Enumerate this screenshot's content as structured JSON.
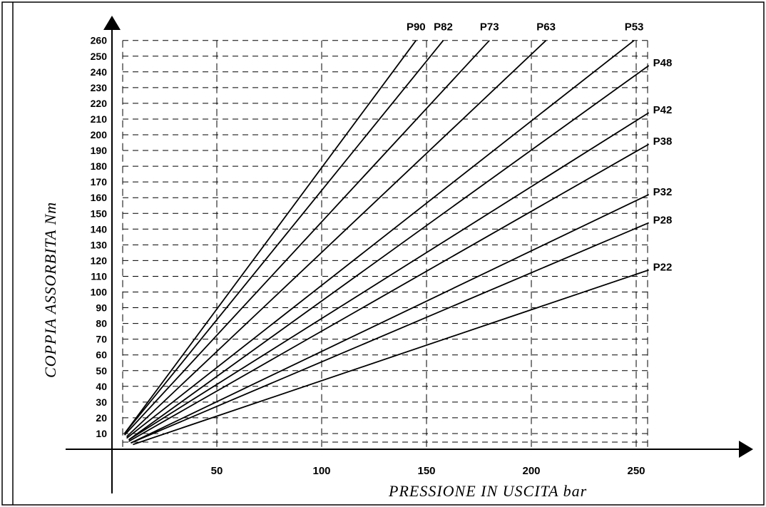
{
  "chart_data": {
    "type": "line",
    "title": "",
    "xlabel": "PRESSIONE  IN  USCITA  bar",
    "ylabel": "COPPIA  ASSORBITA  Nm",
    "xlim": [
      0,
      300
    ],
    "ylim": [
      0,
      260
    ],
    "x_ticks": [
      50,
      100,
      150,
      200,
      250
    ],
    "y_ticks": [
      10,
      20,
      30,
      40,
      50,
      60,
      70,
      80,
      90,
      100,
      110,
      120,
      130,
      140,
      150,
      160,
      170,
      180,
      190,
      200,
      210,
      220,
      230,
      240,
      250,
      260
    ],
    "grid": true,
    "series": [
      {
        "name": "P90",
        "points": [
          [
            6,
            10
          ],
          [
            145,
            260
          ]
        ]
      },
      {
        "name": "P82",
        "points": [
          [
            6,
            10
          ],
          [
            158,
            260
          ]
        ]
      },
      {
        "name": "P73",
        "points": [
          [
            6,
            9
          ],
          [
            180,
            260
          ]
        ]
      },
      {
        "name": "P63",
        "points": [
          [
            7,
            8
          ],
          [
            207,
            260
          ]
        ]
      },
      {
        "name": "P53",
        "points": [
          [
            7,
            7
          ],
          [
            249,
            260
          ]
        ]
      },
      {
        "name": "P48",
        "points": [
          [
            8,
            6
          ],
          [
            256,
            244
          ]
        ]
      },
      {
        "name": "P42",
        "points": [
          [
            8,
            6
          ],
          [
            256,
            214
          ]
        ]
      },
      {
        "name": "P38",
        "points": [
          [
            8,
            5
          ],
          [
            256,
            194
          ]
        ]
      },
      {
        "name": "P32",
        "points": [
          [
            9,
            4
          ],
          [
            256,
            162
          ]
        ]
      },
      {
        "name": "P28",
        "points": [
          [
            9,
            4
          ],
          [
            256,
            144
          ]
        ]
      },
      {
        "name": "P22",
        "points": [
          [
            10,
            3
          ],
          [
            256,
            114
          ]
        ]
      }
    ]
  }
}
